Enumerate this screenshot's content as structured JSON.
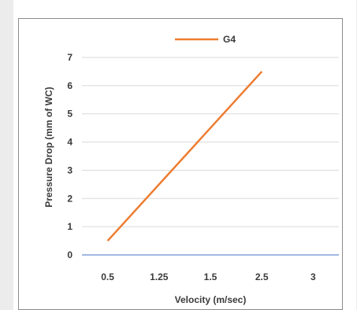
{
  "chart_data": {
    "type": "line",
    "title": "",
    "xlabel": "Velocity (m/sec)",
    "ylabel": "Pressure Drop (mm of WC)",
    "x_tick_labels": [
      "0.5",
      "1.25",
      "1.5",
      "2.5",
      "3"
    ],
    "y_tick_labels": [
      "0",
      "1",
      "2",
      "3",
      "4",
      "5",
      "6",
      "7"
    ],
    "ylim": [
      0,
      7
    ],
    "grid": true,
    "legend_position": "top-center",
    "series": [
      {
        "name": "G4",
        "color": "#ed7d31",
        "points": [
          {
            "x": "0.5",
            "y": 0.5
          },
          {
            "x": "2.5",
            "y": 6.5
          }
        ]
      }
    ]
  }
}
